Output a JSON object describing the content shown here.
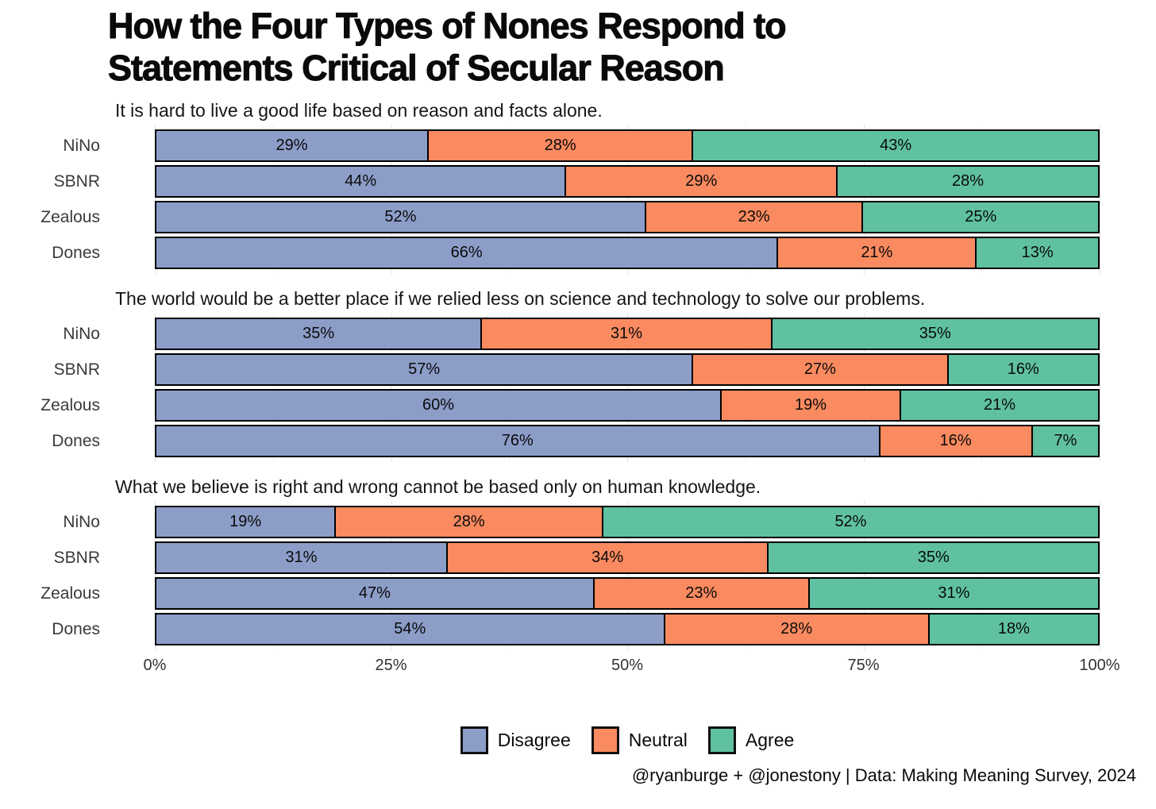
{
  "title_lines": [
    "How the Four Types of Nones Respond to",
    "Statements Critical of Secular Reason"
  ],
  "footer": "@ryanburge + @jonestony | Data: Making Meaning Survey, 2024",
  "legend": [
    {
      "label": "Disagree",
      "color": "#8C9DC8"
    },
    {
      "label": "Neutral",
      "color": "#FA8A5F"
    },
    {
      "label": "Agree",
      "color": "#5FC1A1"
    }
  ],
  "x_axis": {
    "ticks": [
      "0%",
      "25%",
      "50%",
      "75%",
      "100%"
    ],
    "range": [
      0,
      100
    ],
    "minor_step": 12.5
  },
  "chart_data": [
    {
      "type": "bar",
      "orientation": "horizontal",
      "stacked": true,
      "title": "It is hard to live a good life based on reason and facts alone.",
      "categories": [
        "NiNo",
        "SBNR",
        "Zealous",
        "Dones"
      ],
      "series": [
        {
          "name": "Disagree",
          "values": [
            29,
            44,
            52,
            66
          ]
        },
        {
          "name": "Neutral",
          "values": [
            28,
            29,
            23,
            21
          ]
        },
        {
          "name": "Agree",
          "values": [
            43,
            28,
            25,
            13
          ]
        }
      ],
      "xlim": [
        0,
        100
      ],
      "value_suffix": "%"
    },
    {
      "type": "bar",
      "orientation": "horizontal",
      "stacked": true,
      "title": "The world would be a better place if we relied less on science and technology to solve our problems.",
      "categories": [
        "NiNo",
        "SBNR",
        "Zealous",
        "Dones"
      ],
      "series": [
        {
          "name": "Disagree",
          "values": [
            35,
            57,
            60,
            76
          ]
        },
        {
          "name": "Neutral",
          "values": [
            31,
            27,
            19,
            16
          ]
        },
        {
          "name": "Agree",
          "values": [
            35,
            16,
            21,
            7
          ]
        }
      ],
      "xlim": [
        0,
        100
      ],
      "value_suffix": "%"
    },
    {
      "type": "bar",
      "orientation": "horizontal",
      "stacked": true,
      "title": "What we believe is right and wrong cannot be based only on human knowledge.",
      "categories": [
        "NiNo",
        "SBNR",
        "Zealous",
        "Dones"
      ],
      "series": [
        {
          "name": "Disagree",
          "values": [
            19,
            31,
            47,
            54
          ]
        },
        {
          "name": "Neutral",
          "values": [
            28,
            34,
            23,
            28
          ]
        },
        {
          "name": "Agree",
          "values": [
            52,
            35,
            31,
            18
          ]
        }
      ],
      "xlim": [
        0,
        100
      ],
      "value_suffix": "%"
    }
  ]
}
